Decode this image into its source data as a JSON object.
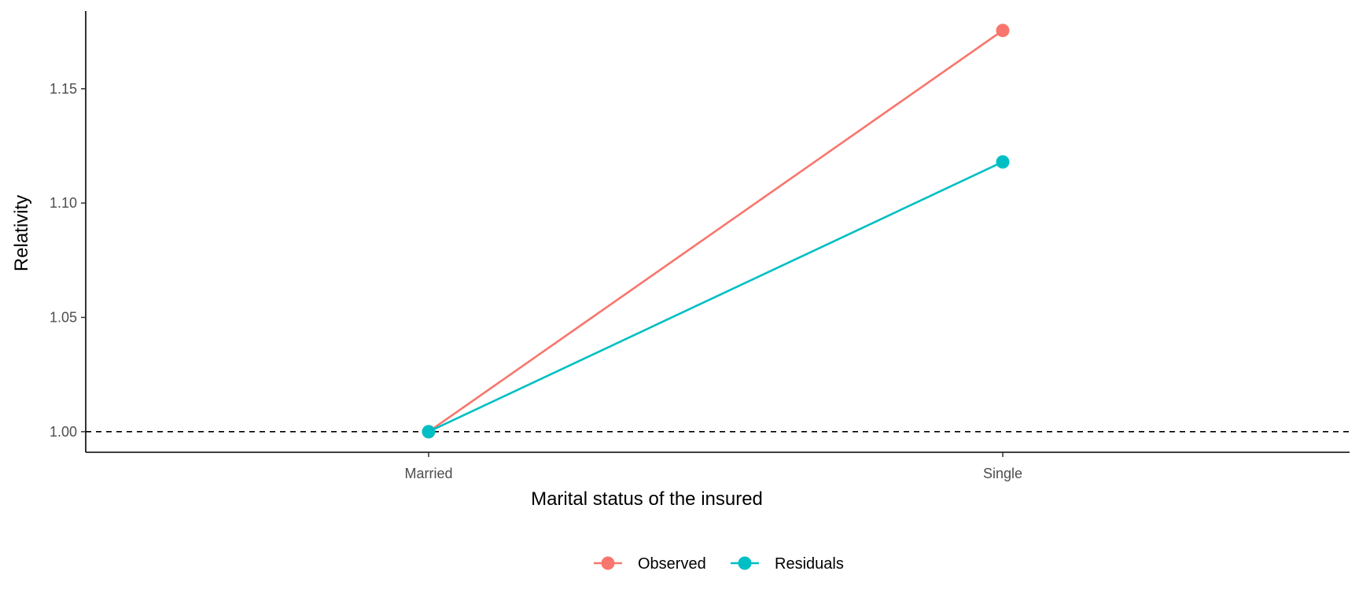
{
  "chart_data": {
    "type": "line",
    "title": "",
    "xlabel": "Marital status of the insured",
    "ylabel": "Relativity",
    "categories": [
      "Married",
      "Single"
    ],
    "ylim": [
      0.991,
      1.184
    ],
    "yticks": [
      1.0,
      1.05,
      1.1,
      1.15
    ],
    "ytick_labels": [
      "1.00",
      "1.05",
      "1.10",
      "1.15"
    ],
    "reference_line": {
      "y": 1.0,
      "style": "dashed",
      "color": "#000000"
    },
    "grid": false,
    "legend": {
      "position": "bottom"
    },
    "series": [
      {
        "name": "Observed",
        "color": "#F8766D",
        "values": [
          1.0,
          1.1755
        ]
      },
      {
        "name": "Residuals",
        "color": "#00BFC4",
        "values": [
          1.0,
          1.118
        ]
      }
    ]
  }
}
